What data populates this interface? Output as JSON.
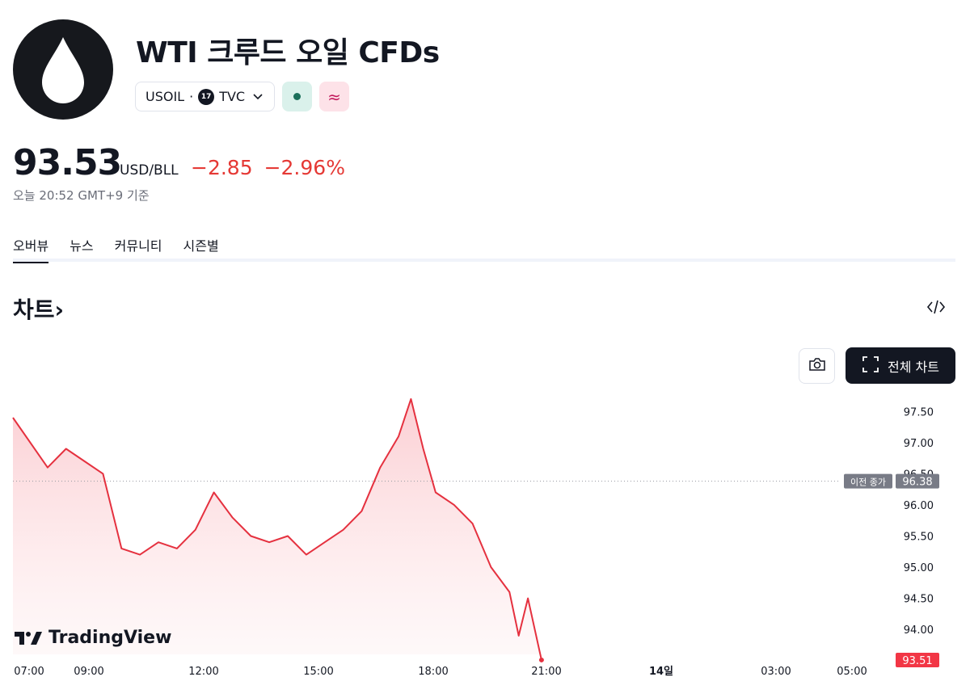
{
  "header": {
    "logo_icon": "oil-drop-icon",
    "title": "WTI 크루드 오일 CFDs",
    "symbol": "USOIL",
    "separator": "·",
    "exchange": "TVC",
    "exchange_icon": "tradingview-icon",
    "market_status_icon": "market-open-dot-icon",
    "cfd_badge": "≈"
  },
  "quote": {
    "price": "93.53",
    "currency": "USD/BLL",
    "change": "−2.85",
    "change_pct": "−2.96%",
    "as_of": "오늘 20:52 GMT+9 기준"
  },
  "tabs": [
    {
      "label": "오버뷰",
      "active": true
    },
    {
      "label": "뉴스",
      "active": false
    },
    {
      "label": "커뮤니티",
      "active": false
    },
    {
      "label": "시즌별",
      "active": false
    }
  ],
  "chart_section": {
    "title": "차트",
    "title_chevron": "›",
    "embed_icon": "code-embed-icon",
    "screenshot_icon": "camera-icon",
    "fullscreen_icon": "expand-corners-icon",
    "full_chart_label": "전체 차트",
    "brand": "TradingView",
    "colors": {
      "line": "#e5313f",
      "fill": "#fde6e8",
      "prev_close_tag": "#787b86",
      "last_tag": "#f23645"
    }
  },
  "chart_data": {
    "type": "area",
    "series": [
      {
        "x": [
          "07:00",
          "07:30",
          "08:00",
          "08:30",
          "09:00",
          "09:30",
          "10:00",
          "10:30",
          "11:00",
          "11:30",
          "12:00",
          "12:30",
          "13:00",
          "13:30",
          "14:00",
          "14:30",
          "15:00",
          "15:30",
          "16:00",
          "16:30",
          "17:00",
          "17:20",
          "17:40",
          "18:00",
          "18:30",
          "19:00",
          "19:30",
          "20:00",
          "20:15",
          "20:30",
          "20:52"
        ],
        "values": [
          97.4,
          96.6,
          96.9,
          96.7,
          96.5,
          95.3,
          95.2,
          95.4,
          95.3,
          95.6,
          96.2,
          95.8,
          95.5,
          95.4,
          95.5,
          95.2,
          95.4,
          95.6,
          95.9,
          96.6,
          97.1,
          97.7,
          96.9,
          96.2,
          96.0,
          95.7,
          95.0,
          94.6,
          93.9,
          94.5,
          93.51
        ]
      }
    ],
    "x_ticks": [
      "07:00",
      "09:00",
      "12:00",
      "15:00",
      "18:00",
      "21:00",
      "14일",
      "03:00",
      "05:00"
    ],
    "y_ticks": [
      "97.50",
      "97.00",
      "96.50",
      "96.00",
      "95.50",
      "95.00",
      "94.50",
      "94.00"
    ],
    "ylim": [
      93.6,
      97.75
    ],
    "prev_close": {
      "label": "이전 종가",
      "value": "96.38"
    },
    "last_price": "93.51",
    "grid": false
  }
}
